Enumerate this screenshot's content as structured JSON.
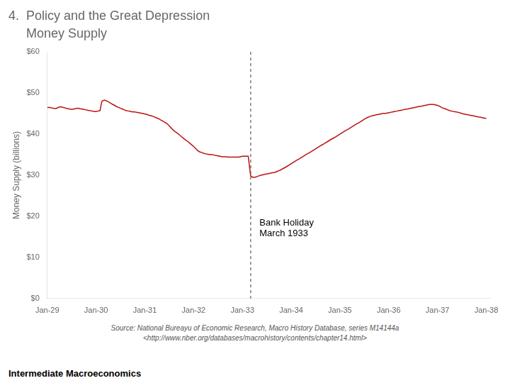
{
  "chart_data": {
    "type": "line",
    "title": "4.  Policy and the Great Depression",
    "subtitle": "     Money Supply",
    "y_label": "Money Supply (billions)",
    "source": "Source: National Bureayu of Economic Research, Macro History Database, series M14144a\n<http://www.nber.org/databases/macrohistory/contents/chapter14.html>",
    "footer": "Intermediate Macroeconomics",
    "color": "#BB1111",
    "grid": false,
    "annotations": [
      {
        "text": "Bank Holiday\nMarch 1933",
        "x": 1933.35,
        "y": 17
      }
    ],
    "vlines": [
      {
        "x": 1933.17,
        "color": "#555555",
        "line_style": "dashed"
      }
    ],
    "xlim": [
      1929,
      1938.08
    ],
    "xticks": [
      {
        "value": 1929,
        "label": "Jan-29"
      },
      {
        "value": 1930,
        "label": "Jan-30"
      },
      {
        "value": 1931,
        "label": "Jan-31"
      },
      {
        "value": 1932,
        "label": "Jan-32"
      },
      {
        "value": 1933,
        "label": "Jan-33"
      },
      {
        "value": 1934,
        "label": "Jan-34"
      },
      {
        "value": 1935,
        "label": "Jan-35"
      },
      {
        "value": 1936,
        "label": "Jan-36"
      },
      {
        "value": 1937,
        "label": "Jan-37"
      },
      {
        "value": 1938,
        "label": "Jan-38"
      }
    ],
    "ylim": [
      0,
      60
    ],
    "yticks": [
      {
        "value": 0,
        "label": "$0"
      },
      {
        "value": 10,
        "label": "$10"
      },
      {
        "value": 20,
        "label": "$20"
      },
      {
        "value": 30,
        "label": "$30"
      },
      {
        "value": 40,
        "label": "$40"
      },
      {
        "value": 50,
        "label": "$50"
      },
      {
        "value": 60,
        "label": "$60"
      }
    ],
    "x": [
      1929.0,
      1929.05,
      1929.08,
      1929.12,
      1929.17,
      1929.21,
      1929.25,
      1929.29,
      1929.33,
      1929.38,
      1929.42,
      1929.46,
      1929.5,
      1929.54,
      1929.58,
      1929.62,
      1929.67,
      1929.71,
      1929.75,
      1929.79,
      1929.83,
      1929.88,
      1929.92,
      1929.96,
      1930.0,
      1930.04,
      1930.08,
      1930.12,
      1930.17,
      1930.21,
      1930.25,
      1930.29,
      1930.33,
      1930.38,
      1930.42,
      1930.46,
      1930.5,
      1930.54,
      1930.58,
      1930.62,
      1930.67,
      1930.71,
      1930.75,
      1930.79,
      1930.83,
      1930.88,
      1930.92,
      1930.96,
      1931.0,
      1931.04,
      1931.08,
      1931.12,
      1931.17,
      1931.21,
      1931.25,
      1931.29,
      1931.33,
      1931.38,
      1931.42,
      1931.46,
      1931.5,
      1931.54,
      1931.58,
      1931.62,
      1931.67,
      1931.71,
      1931.75,
      1931.79,
      1931.83,
      1931.88,
      1931.92,
      1931.96,
      1932.0,
      1932.04,
      1932.08,
      1932.12,
      1932.17,
      1932.21,
      1932.25,
      1932.29,
      1932.33,
      1932.38,
      1932.42,
      1932.46,
      1932.5,
      1932.54,
      1932.58,
      1932.62,
      1932.67,
      1932.71,
      1932.75,
      1932.79,
      1932.83,
      1932.88,
      1932.92,
      1932.96,
      1933.0,
      1933.04,
      1933.08,
      1933.12,
      1933.17,
      1933.21,
      1933.25,
      1933.29,
      1933.33,
      1933.38,
      1933.42,
      1933.46,
      1933.5,
      1933.54,
      1933.58,
      1933.62,
      1933.67,
      1933.71,
      1933.75,
      1933.79,
      1933.83,
      1933.88,
      1933.92,
      1933.96,
      1934.0,
      1934.04,
      1934.08,
      1934.12,
      1934.17,
      1934.21,
      1934.25,
      1934.29,
      1934.33,
      1934.38,
      1934.42,
      1934.46,
      1934.5,
      1934.54,
      1934.58,
      1934.62,
      1934.67,
      1934.71,
      1934.75,
      1934.79,
      1934.83,
      1934.88,
      1934.92,
      1934.96,
      1935.0,
      1935.04,
      1935.08,
      1935.12,
      1935.17,
      1935.21,
      1935.25,
      1935.29,
      1935.33,
      1935.38,
      1935.42,
      1935.46,
      1935.5,
      1935.54,
      1935.58,
      1935.62,
      1935.67,
      1935.71,
      1935.75,
      1935.79,
      1935.83,
      1935.88,
      1935.92,
      1935.96,
      1936.0,
      1936.04,
      1936.08,
      1936.12,
      1936.17,
      1936.21,
      1936.25,
      1936.29,
      1936.33,
      1936.38,
      1936.42,
      1936.46,
      1936.5,
      1936.54,
      1936.58,
      1936.62,
      1936.67,
      1936.71,
      1936.75,
      1936.79,
      1936.83,
      1936.88,
      1936.92,
      1936.96,
      1937.0,
      1937.04,
      1937.08,
      1937.12,
      1937.17,
      1937.21,
      1937.25,
      1937.29,
      1937.33,
      1937.38,
      1937.42,
      1937.46,
      1937.5,
      1937.54,
      1937.58,
      1937.62,
      1937.67,
      1937.71,
      1937.75,
      1937.79,
      1937.83,
      1937.88,
      1937.92,
      1937.96,
      1938.0
    ],
    "values": [
      46.5,
      46.5,
      46.4,
      46.3,
      46.2,
      46.4,
      46.6,
      46.6,
      46.5,
      46.3,
      46.2,
      46.1,
      46.0,
      46.1,
      46.2,
      46.3,
      46.2,
      46.1,
      46.0,
      45.9,
      45.8,
      45.7,
      45.6,
      45.5,
      45.5,
      45.6,
      45.7,
      48.0,
      48.3,
      48.1,
      47.9,
      47.6,
      47.3,
      47.0,
      46.7,
      46.5,
      46.3,
      46.1,
      45.9,
      45.7,
      45.6,
      45.5,
      45.4,
      45.4,
      45.3,
      45.2,
      45.1,
      45.0,
      44.9,
      44.8,
      44.6,
      44.5,
      44.3,
      44.1,
      43.9,
      43.7,
      43.4,
      43.1,
      42.8,
      42.5,
      42.0,
      41.5,
      41.0,
      40.6,
      40.2,
      39.8,
      39.4,
      39.0,
      38.6,
      38.2,
      37.8,
      37.4,
      37.0,
      36.5,
      36.0,
      35.7,
      35.5,
      35.3,
      35.2,
      35.1,
      35.0,
      35.0,
      34.9,
      34.8,
      34.7,
      34.6,
      34.5,
      34.5,
      34.5,
      34.4,
      34.4,
      34.4,
      34.4,
      34.4,
      34.4,
      34.5,
      34.6,
      34.6,
      34.6,
      34.6,
      29.8,
      29.5,
      29.5,
      29.6,
      29.8,
      30.0,
      30.1,
      30.2,
      30.3,
      30.4,
      30.5,
      30.6,
      30.7,
      30.9,
      31.1,
      31.3,
      31.6,
      31.9,
      32.2,
      32.5,
      32.8,
      33.1,
      33.4,
      33.7,
      34.0,
      34.3,
      34.6,
      34.9,
      35.2,
      35.5,
      35.8,
      36.1,
      36.4,
      36.7,
      37.0,
      37.3,
      37.6,
      37.9,
      38.2,
      38.5,
      38.8,
      39.1,
      39.4,
      39.7,
      40.0,
      40.3,
      40.6,
      40.9,
      41.2,
      41.5,
      41.8,
      42.1,
      42.4,
      42.7,
      43.0,
      43.3,
      43.6,
      43.9,
      44.1,
      44.3,
      44.5,
      44.6,
      44.7,
      44.8,
      44.9,
      45.0,
      45.0,
      45.1,
      45.2,
      45.3,
      45.4,
      45.5,
      45.6,
      45.7,
      45.8,
      45.9,
      46.0,
      46.1,
      46.2,
      46.3,
      46.4,
      46.5,
      46.6,
      46.7,
      46.8,
      46.9,
      47.0,
      47.1,
      47.2,
      47.2,
      47.2,
      47.1,
      47.0,
      46.8,
      46.5,
      46.3,
      46.1,
      45.9,
      45.7,
      45.6,
      45.5,
      45.4,
      45.3,
      45.2,
      45.0,
      44.9,
      44.8,
      44.7,
      44.6,
      44.5,
      44.4,
      44.3,
      44.2,
      44.1,
      44.0,
      43.9,
      43.8
    ]
  }
}
